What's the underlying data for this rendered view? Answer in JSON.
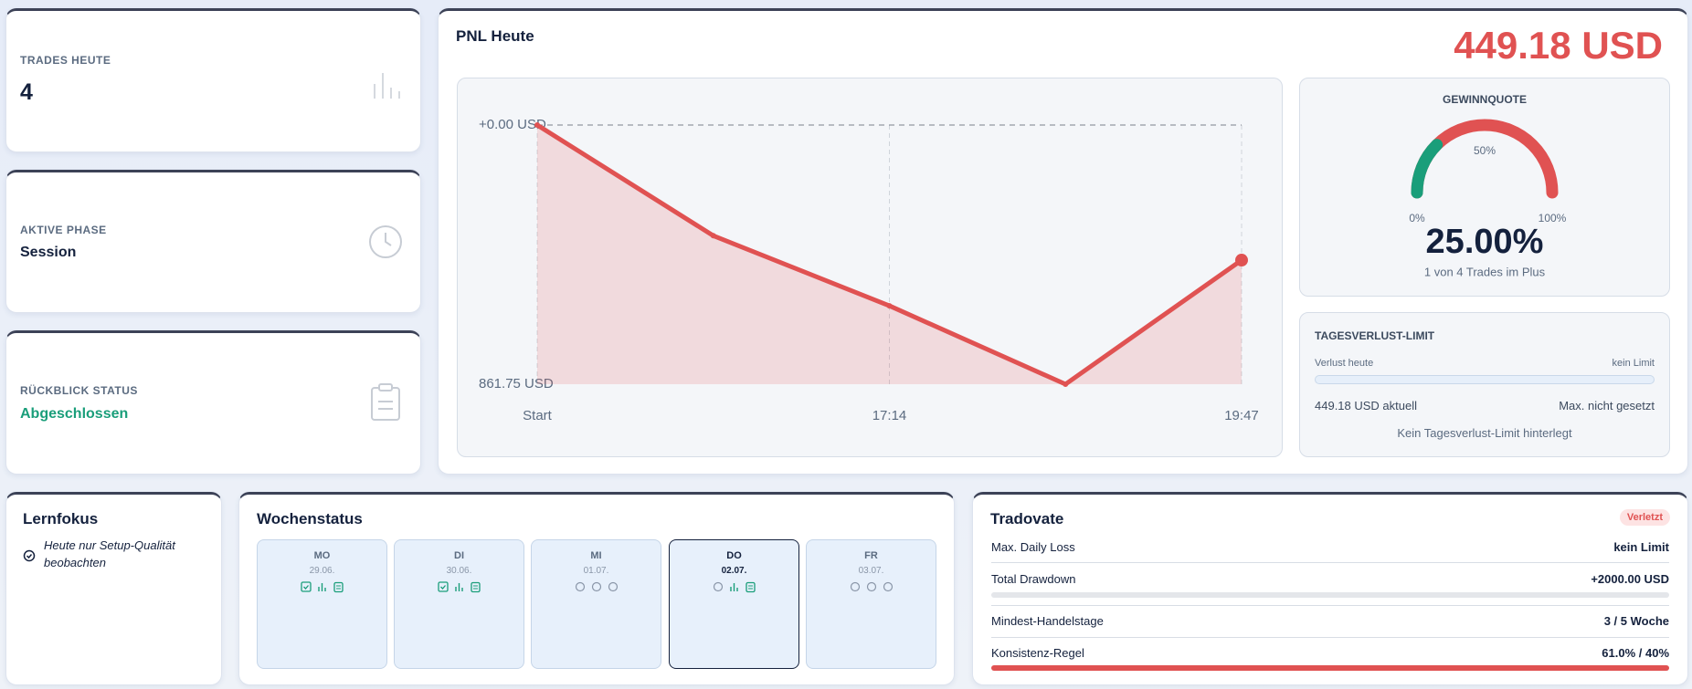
{
  "cards": [
    {
      "label": "TRADES HEUTE",
      "value": "4"
    },
    {
      "label": "AKTIVE PHASE",
      "value": "Session"
    },
    {
      "label": "RÜCKBLICK STATUS",
      "value": "Abgeschlossen"
    }
  ],
  "pnl": {
    "title": "PNL Heute",
    "total": "449.18 USD"
  },
  "chart_data": {
    "type": "line",
    "categories": [
      "Start",
      null,
      "17:14",
      null,
      "19:47"
    ],
    "values": [
      0,
      -368,
      -601,
      -861.75,
      -449.18
    ],
    "color": "#e05252",
    "ylim": [
      -861.75,
      0
    ],
    "yticks": [
      {
        "value": -861.75,
        "label": "861.75 USD"
      },
      {
        "value": 0,
        "label": "+0.00 USD"
      }
    ],
    "grid": true
  },
  "gauge": {
    "title": "GEWINNQUOTE",
    "value": 25,
    "value_label": "25.00%",
    "ticks": [
      {
        "value": 0,
        "label": "0%"
      },
      {
        "value": 50,
        "label": "50%"
      },
      {
        "value": 100,
        "label": "100%"
      }
    ],
    "caption": "1 von 4 Trades im Plus",
    "color": "#1a9e7a",
    "track_color": "#e05252"
  },
  "limit": {
    "title": "TAGESVERLUST-LIMIT",
    "left_label": "Verlust heute",
    "right_label": "kein Limit",
    "current": "449.18 USD aktuell",
    "max": "Max. nicht gesetzt",
    "note": "Kein Tagesverlust-Limit hinterlegt"
  },
  "focus": {
    "title": "Lernfokus",
    "item": "Heute nur Setup-Qualität beobachten"
  },
  "week": {
    "title": "Wochenstatus",
    "days": [
      {
        "day": "MO",
        "date": "29.06."
      },
      {
        "day": "DI",
        "date": "30.06."
      },
      {
        "day": "MI",
        "date": "01.07."
      },
      {
        "day": "DO",
        "date": "02.07."
      },
      {
        "day": "FR",
        "date": "03.07."
      }
    ]
  },
  "tradovate": {
    "title": "Tradovate",
    "badge": "Verletzt",
    "rows": [
      [
        "Max. Daily Loss",
        "kein Limit"
      ],
      [
        "Total Drawdown",
        "+2000.00 USD"
      ],
      [
        "Mindest-Handelstage",
        "3 / 5 Woche"
      ],
      [
        "Konsistenz-Regel",
        "61.0% / 40%"
      ]
    ]
  }
}
